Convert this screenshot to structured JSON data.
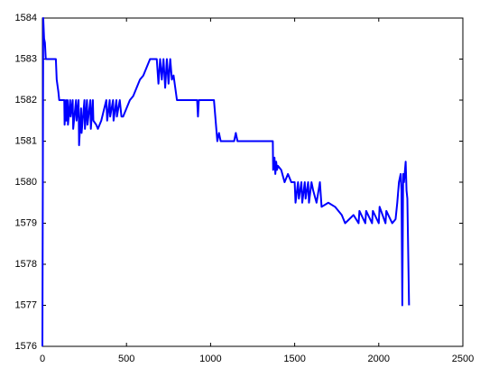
{
  "chart_data": {
    "type": "line",
    "x": [
      0,
      5,
      10,
      15,
      20,
      30,
      60,
      80,
      85,
      95,
      100,
      130,
      132,
      140,
      142,
      150,
      152,
      165,
      168,
      180,
      183,
      200,
      203,
      215,
      218,
      230,
      233,
      250,
      253,
      265,
      268,
      285,
      288,
      300,
      303,
      320,
      330,
      350,
      380,
      385,
      400,
      403,
      420,
      423,
      440,
      443,
      460,
      470,
      480,
      500,
      520,
      540,
      560,
      580,
      600,
      620,
      640,
      660,
      680,
      690,
      700,
      710,
      720,
      730,
      740,
      750,
      760,
      770,
      780,
      790,
      800,
      850,
      920,
      925,
      930,
      935,
      1000,
      1020,
      1030,
      1040,
      1050,
      1060,
      1080,
      1100,
      1140,
      1150,
      1160,
      1200,
      1300,
      1370,
      1372,
      1380,
      1385,
      1390,
      1395,
      1400,
      1420,
      1440,
      1460,
      1480,
      1500,
      1505,
      1520,
      1525,
      1540,
      1545,
      1560,
      1565,
      1580,
      1585,
      1600,
      1610,
      1630,
      1650,
      1660,
      1700,
      1740,
      1780,
      1800,
      1850,
      1880,
      1885,
      1920,
      1925,
      1960,
      1965,
      2000,
      2005,
      2040,
      2045,
      2080,
      2100,
      2110,
      2120,
      2130,
      2135,
      2140,
      2145,
      2150,
      2160,
      2165,
      2170,
      2180
    ],
    "values": [
      1576,
      1584,
      1583.5,
      1583.4,
      1583,
      1583,
      1583,
      1583,
      1582.5,
      1582.2,
      1582,
      1582,
      1581.4,
      1582,
      1581.5,
      1582,
      1581.4,
      1582,
      1581.6,
      1582,
      1581.3,
      1582,
      1581.5,
      1582,
      1580.9,
      1581.8,
      1581.2,
      1582,
      1581.3,
      1582,
      1581.4,
      1582,
      1581.3,
      1582,
      1581.5,
      1581.4,
      1581.3,
      1581.5,
      1582,
      1581.5,
      1582,
      1581.6,
      1582,
      1581.5,
      1582,
      1581.6,
      1582,
      1581.6,
      1581.6,
      1581.8,
      1582,
      1582.1,
      1582.3,
      1582.5,
      1582.6,
      1582.8,
      1583,
      1583,
      1583,
      1582.4,
      1583,
      1582.5,
      1583,
      1582.3,
      1583,
      1582.4,
      1583,
      1582.5,
      1582.6,
      1582.3,
      1582,
      1582,
      1582,
      1581.6,
      1582,
      1582,
      1582,
      1582,
      1581.5,
      1581,
      1581.2,
      1581,
      1581,
      1581,
      1581,
      1581.2,
      1581,
      1581,
      1581,
      1581,
      1580.3,
      1580.6,
      1580.2,
      1580.5,
      1580.3,
      1580.4,
      1580.3,
      1580,
      1580.2,
      1580,
      1580,
      1579.5,
      1580,
      1579.6,
      1580,
      1579.5,
      1580,
      1579.6,
      1580,
      1579.5,
      1580,
      1579.8,
      1579.5,
      1580,
      1579.4,
      1579.5,
      1579.4,
      1579.2,
      1579,
      1579.2,
      1579,
      1579.3,
      1579,
      1579.3,
      1579,
      1579.3,
      1579,
      1579.4,
      1579,
      1579.3,
      1579,
      1579.1,
      1579.5,
      1580,
      1580.2,
      1579.8,
      1577,
      1580.2,
      1580,
      1580.5,
      1579.8,
      1579.6,
      1577
    ],
    "color": "#0000ff",
    "xlim": [
      0,
      2500
    ],
    "xticks": [
      0,
      500,
      1000,
      1500,
      2000,
      2500
    ],
    "ylim": [
      1576,
      1584
    ],
    "yticks": [
      1576,
      1577,
      1578,
      1579,
      1580,
      1581,
      1582,
      1583,
      1584
    ]
  }
}
